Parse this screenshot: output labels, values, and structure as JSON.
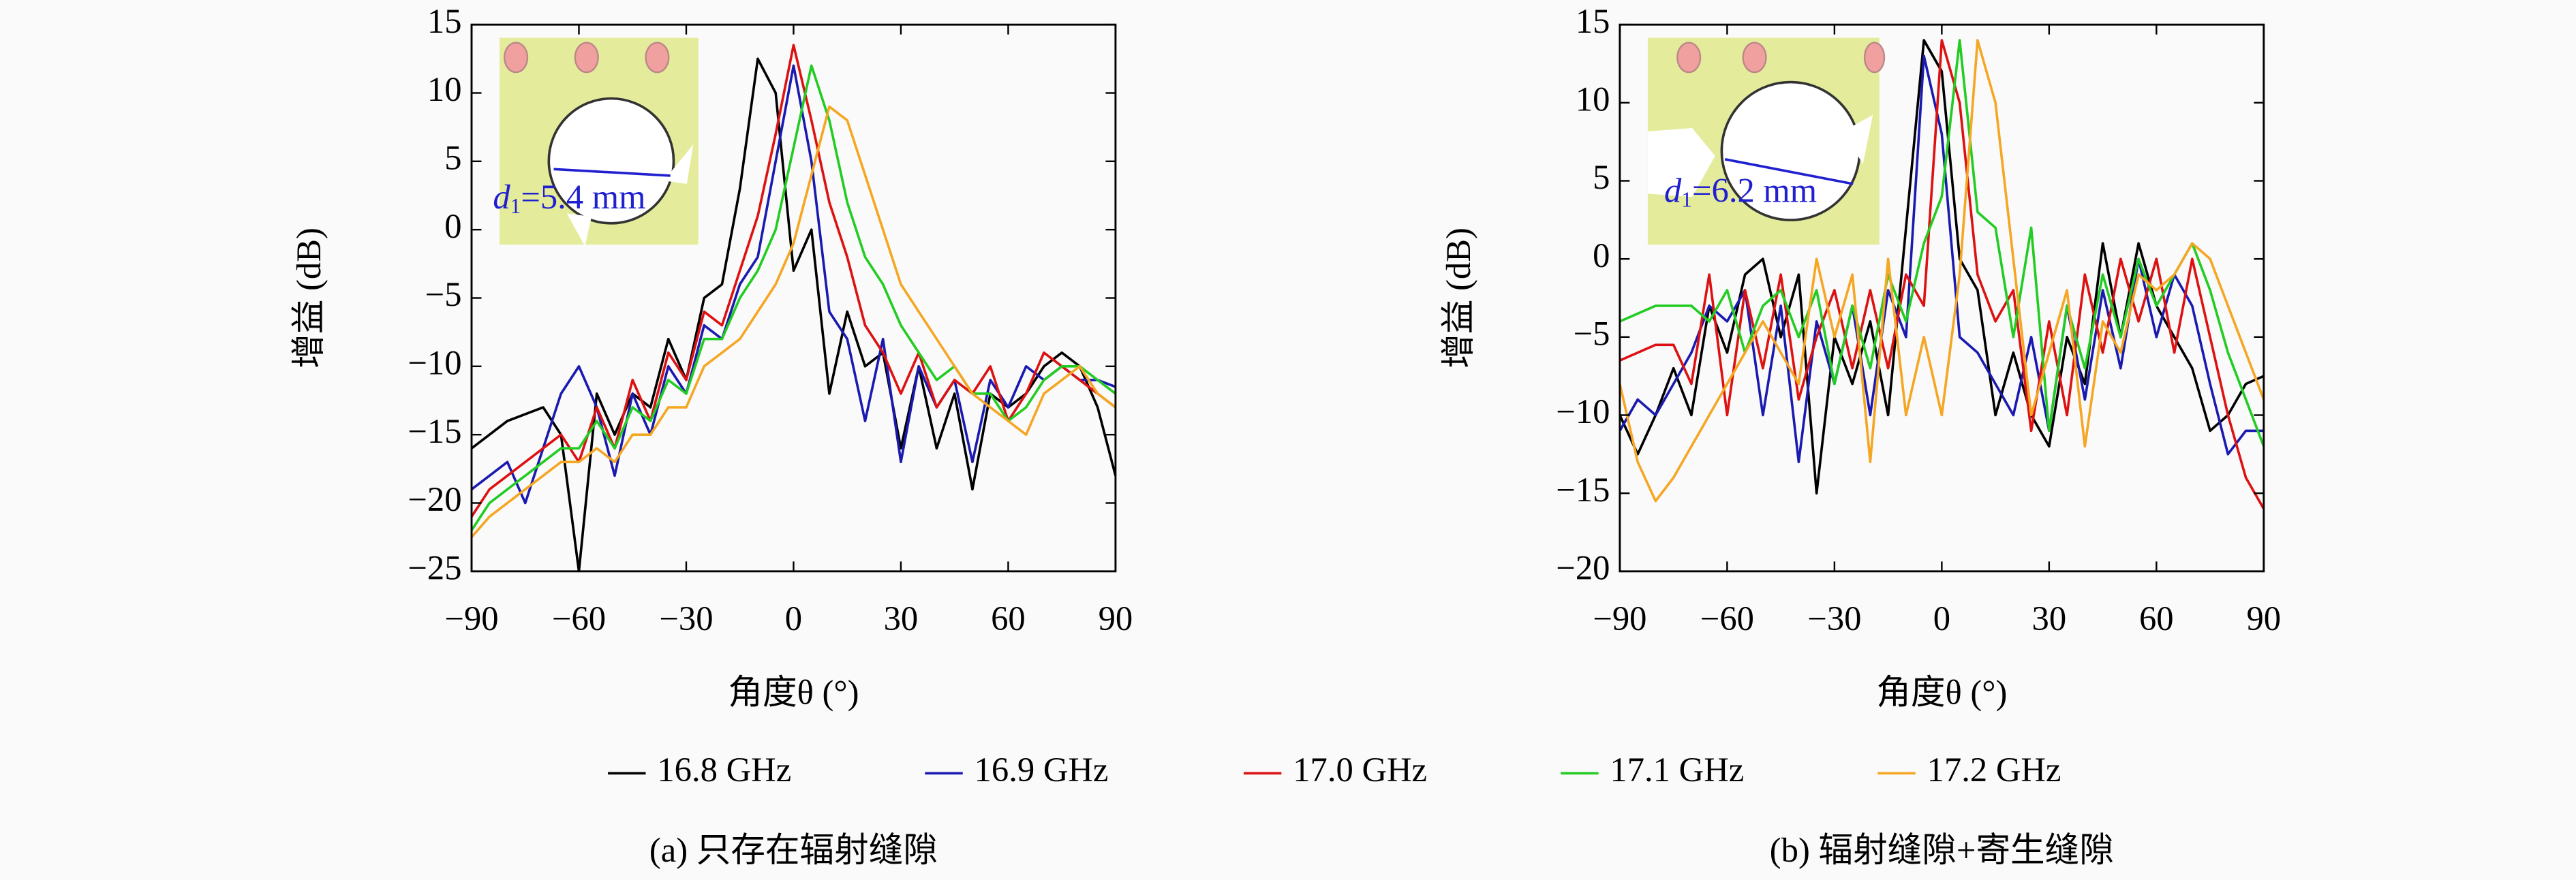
{
  "chart_data": [
    {
      "type": "line",
      "title": "(a) 只存在辐射缝隙",
      "xlabel": "角度θ (°)",
      "ylabel": "增益 (dB)",
      "inset_label": {
        "symbol": "d",
        "subscript": "1",
        "text": "=5.4 mm"
      },
      "xlim": [
        -90,
        90
      ],
      "ylim": [
        -25,
        15
      ],
      "xticks": [
        {
          "value": -90,
          "label": "−90"
        },
        {
          "value": -60,
          "label": "−60"
        },
        {
          "value": -30,
          "label": "−30"
        },
        0,
        30,
        60,
        90
      ],
      "yticks": [
        {
          "value": -25,
          "label": "−25"
        },
        {
          "value": -20,
          "label": "−20"
        },
        {
          "value": -15,
          "label": "−15"
        },
        {
          "value": -10,
          "label": "−10"
        },
        {
          "value": -5,
          "label": "−5"
        },
        0,
        5,
        10,
        15
      ],
      "x": [
        -90,
        -85,
        -80,
        -75,
        -70,
        -65,
        -60,
        -55,
        -50,
        -45,
        -40,
        -35,
        -30,
        -25,
        -20,
        -15,
        -10,
        -5,
        0,
        5,
        10,
        15,
        20,
        25,
        30,
        35,
        40,
        45,
        50,
        55,
        60,
        65,
        70,
        75,
        80,
        85,
        90
      ],
      "series": [
        {
          "name": "16.8 GHz",
          "color": "#000000",
          "values": [
            -16,
            -15,
            -14,
            -13.5,
            -13,
            -15,
            -25,
            -12,
            -15,
            -12,
            -13,
            -8,
            -11,
            -5,
            -4,
            3,
            12.5,
            10,
            -3,
            0,
            -12,
            -6,
            -10,
            -9,
            -16,
            -10,
            -16,
            -12,
            -19,
            -12,
            -13,
            -12,
            -10,
            -9,
            -10,
            -13,
            -18
          ]
        },
        {
          "name": "16.9 GHz",
          "color": "#1a1ab0",
          "values": [
            -19,
            -18,
            -17,
            -20,
            -16,
            -12,
            -10,
            -13,
            -18,
            -12,
            -15,
            -10,
            -12,
            -7,
            -8,
            -4,
            -2,
            5,
            12,
            5,
            -6,
            -8,
            -14,
            -8,
            -17,
            -10,
            -13,
            -11,
            -17,
            -11,
            -13,
            -10,
            -11,
            -10,
            -11,
            -11,
            -11.5
          ]
        },
        {
          "name": "17.0 GHz",
          "color": "#dd1111",
          "values": [
            -21,
            -19,
            -18,
            -17,
            -16,
            -15,
            -17,
            -13,
            -16,
            -11,
            -14,
            -9,
            -11,
            -6,
            -7,
            -3,
            1,
            7,
            13.5,
            8,
            2,
            -2,
            -7,
            -9,
            -12,
            -9,
            -13,
            -11,
            -12,
            -10,
            -14,
            -12,
            -9,
            -10,
            -11,
            -12,
            -13
          ]
        },
        {
          "name": "17.1 GHz",
          "color": "#22cc22",
          "values": [
            -22,
            -20,
            -19,
            -18,
            -17,
            -16,
            -16,
            -14,
            -16,
            -13,
            -14,
            -11,
            -12,
            -8,
            -8,
            -5,
            -3,
            0,
            6,
            12,
            8,
            2,
            -2,
            -4,
            -7,
            -9,
            -11,
            -10,
            -12,
            -12,
            -14,
            -13,
            -11,
            -10,
            -10,
            -11,
            -12
          ]
        },
        {
          "name": "17.2 GHz",
          "color": "#f5a623",
          "values": [
            -22.5,
            -21,
            -20,
            -19,
            -18,
            -17,
            -17,
            -16,
            -17,
            -15,
            -15,
            -13,
            -13,
            -10,
            -9,
            -8,
            -6,
            -4,
            -1,
            4,
            9,
            8,
            4,
            0,
            -4,
            -6,
            -8,
            -10,
            -12,
            -13,
            -14,
            -15,
            -12,
            -11,
            -10,
            -12,
            -13
          ]
        }
      ]
    },
    {
      "type": "line",
      "title": "(b) 辐射缝隙+寄生缝隙",
      "xlabel": "角度θ (°)",
      "ylabel": "增益 (dB)",
      "inset_label": {
        "symbol": "d",
        "subscript": "1",
        "text": "=6.2 mm"
      },
      "xlim": [
        -90,
        90
      ],
      "ylim": [
        -20,
        15
      ],
      "xticks": [
        {
          "value": -90,
          "label": "−90"
        },
        {
          "value": -60,
          "label": "−60"
        },
        {
          "value": -30,
          "label": "−30"
        },
        0,
        30,
        60,
        90
      ],
      "yticks": [
        {
          "value": -20,
          "label": "−20"
        },
        {
          "value": -15,
          "label": "−15"
        },
        {
          "value": -10,
          "label": "−10"
        },
        {
          "value": -5,
          "label": "−5"
        },
        0,
        5,
        10,
        15
      ],
      "x": [
        -90,
        -85,
        -80,
        -75,
        -70,
        -65,
        -60,
        -55,
        -50,
        -45,
        -40,
        -35,
        -30,
        -25,
        -20,
        -15,
        -10,
        -5,
        0,
        5,
        10,
        15,
        20,
        25,
        30,
        35,
        40,
        45,
        50,
        55,
        60,
        65,
        70,
        75,
        80,
        85,
        90
      ],
      "series": [
        {
          "name": "16.8 GHz",
          "color": "#000000",
          "values": [
            -10,
            -12.5,
            -10,
            -7,
            -10,
            -3,
            -6,
            -1,
            0,
            -5,
            -1,
            -15,
            -5,
            -8,
            -4,
            -10,
            2,
            14,
            12,
            0,
            -2,
            -10,
            -6,
            -10,
            -12,
            -5,
            -8,
            1,
            -5,
            1,
            -3,
            -5,
            -7,
            -11,
            -10,
            -8,
            -7.5
          ]
        },
        {
          "name": "16.9 GHz",
          "color": "#1a1ab0",
          "values": [
            -11,
            -9,
            -10,
            -8,
            -6,
            -3,
            -4,
            -2,
            -10,
            -3,
            -13,
            -4,
            -8,
            -3,
            -10,
            -2,
            -5,
            13,
            8,
            -5,
            -6,
            -8,
            -10,
            -5,
            -11,
            -3,
            -9,
            -2,
            -7,
            0,
            -5,
            -1,
            -3,
            -8,
            -12.5,
            -11,
            -11
          ]
        },
        {
          "name": "17.0 GHz",
          "color": "#dd1111",
          "values": [
            -6.5,
            -6,
            -5.5,
            -5.5,
            -8,
            -1,
            -10,
            -2,
            -7,
            -1,
            -9,
            -5,
            -2,
            -7,
            -2,
            -7,
            -1,
            -3,
            14,
            10,
            -1,
            -4,
            -2,
            -11,
            -4,
            -10,
            -1,
            -6,
            0,
            -4,
            0,
            -6,
            0,
            -5,
            -10,
            -14,
            -16
          ]
        },
        {
          "name": "17.1 GHz",
          "color": "#22cc22",
          "values": [
            -4,
            -3.5,
            -3,
            -3,
            -3,
            -4,
            -2,
            -6,
            -3,
            -2,
            -5,
            -2,
            -8,
            -3,
            -7,
            -1,
            -4,
            1,
            4,
            14,
            3,
            2,
            -5,
            2,
            -11,
            -3,
            -7,
            -1,
            -5,
            0,
            -3,
            -1,
            1,
            -2,
            -6,
            -9,
            -12
          ]
        },
        {
          "name": "17.2 GHz",
          "color": "#f5a623",
          "values": [
            -8,
            -13,
            -15.5,
            -14,
            -12,
            -10,
            -8,
            -6,
            -4,
            -6,
            -8,
            0,
            -5,
            -1,
            -13,
            0,
            -10,
            -5,
            -10,
            -1,
            14,
            10,
            0,
            -10,
            -6,
            -2,
            -12,
            -4,
            -6,
            -1,
            -2,
            -1,
            1,
            0,
            -3,
            -6,
            -9
          ]
        }
      ]
    }
  ]
}
